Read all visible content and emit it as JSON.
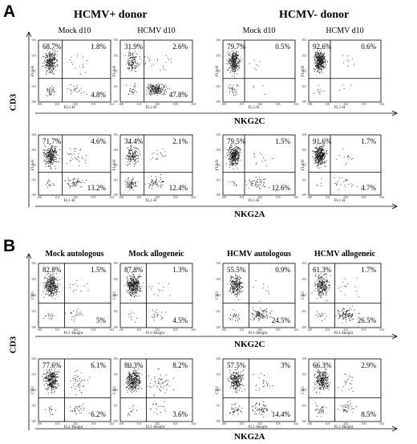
{
  "figure": {
    "panel_a": {
      "letter": "A",
      "groups": [
        "HCMV+ donor",
        "HCMV- donor"
      ],
      "y_axis_label": "CD3",
      "x_axis_labels": [
        "NKG2C",
        "NKG2A"
      ],
      "plots": [
        {
          "title": "Mock  d10",
          "x_axis": "FL2-H",
          "y_axis": "FL3-H",
          "quadrants": {
            "ul": "68.7%",
            "ur": "1.8%",
            "lr": "4.8%"
          }
        },
        {
          "title": "HCMV  d10",
          "x_axis": "FL2-H",
          "y_axis": "FL3-H",
          "quadrants": {
            "ul": "31.9%",
            "ur": "2.6%",
            "lr": "47.8%"
          }
        },
        {
          "title": "Mock  d10",
          "x_axis": "FL2-H",
          "y_axis": "FL3-H",
          "quadrants": {
            "ul": "79.7%",
            "ur": "0.5%",
            "lr": ""
          }
        },
        {
          "title": "HCMV  d10",
          "x_axis": "FL2-H",
          "y_axis": "FL3-H",
          "quadrants": {
            "ul": "92.6%",
            "ur": "0.6%",
            "lr": ""
          }
        },
        {
          "title": "",
          "x_axis": "FL1-H",
          "y_axis": "FL3-H",
          "quadrants": {
            "ul": "71.7%",
            "ur": "4.6%",
            "lr": "13.2%"
          }
        },
        {
          "title": "",
          "x_axis": "FL1-H",
          "y_axis": "FL3-H",
          "quadrants": {
            "ul": "34.4%",
            "ur": "2.1%",
            "lr": "12.4%"
          }
        },
        {
          "title": "",
          "x_axis": "FL1-H",
          "y_axis": "FL3-H",
          "quadrants": {
            "ul": "79.5%",
            "ur": "1.5%",
            "lr": "12.6%"
          }
        },
        {
          "title": "",
          "x_axis": "FL1-H",
          "y_axis": "FL3-H",
          "quadrants": {
            "ul": "91.6%",
            "ur": "1.7%",
            "lr": "4.7%"
          }
        }
      ]
    },
    "panel_b": {
      "letter": "B",
      "y_axis_label": "CD3",
      "x_axis_labels": [
        "NKG2C",
        "NKG2A"
      ],
      "plots": [
        {
          "title": "Mock autologous",
          "x_axis": "FL1-Height",
          "y_axis": "CD3",
          "quadrants": {
            "ul": "82.8%",
            "ur": "1.5%",
            "lr": "5%"
          }
        },
        {
          "title": "Mock allogeneic",
          "x_axis": "FL1-Height",
          "y_axis": "CD3",
          "quadrants": {
            "ul": "87.8%",
            "ur": "1.3%",
            "lr": "4.5%"
          }
        },
        {
          "title": "HCMV  autologous",
          "x_axis": "FL1-Height",
          "y_axis": "CD3",
          "quadrants": {
            "ul": "55.5%",
            "ur": "0.9%",
            "lr": "24.5%"
          }
        },
        {
          "title": "HCMV  allogeneic",
          "x_axis": "FL1-Height",
          "y_axis": "CD3",
          "quadrants": {
            "ul": "61.3%",
            "ur": "1.7%",
            "lr": "26.5%"
          }
        },
        {
          "title": "",
          "x_axis": "FL1-Height",
          "y_axis": "CD3",
          "quadrants": {
            "ul": "77.6%",
            "ur": "6.1%",
            "lr": "6.2%"
          }
        },
        {
          "title": "",
          "x_axis": "FL1-Height",
          "y_axis": "CD3",
          "quadrants": {
            "ul": "80.3%",
            "ur": "8.2%",
            "lr": "3.6%"
          }
        },
        {
          "title": "",
          "x_axis": "FL1-Height",
          "y_axis": "CD3",
          "quadrants": {
            "ul": "57.5%",
            "ur": "3%",
            "lr": "14.4%"
          }
        },
        {
          "title": "",
          "x_axis": "FL1-Height",
          "y_axis": "CD3",
          "quadrants": {
            "ul": "66.3%",
            "ur": "2.9%",
            "lr": "8.5%"
          }
        }
      ]
    }
  }
}
